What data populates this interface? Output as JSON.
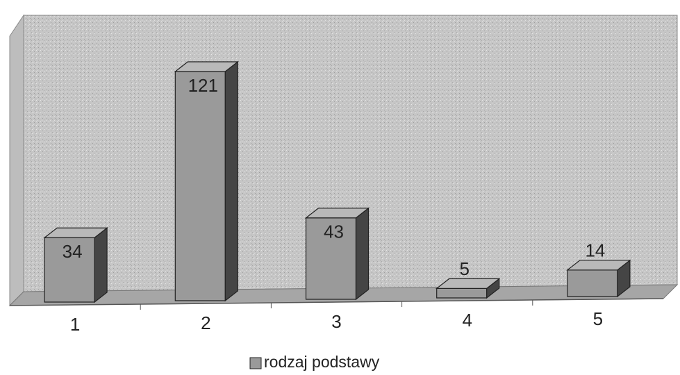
{
  "chart_data": {
    "type": "bar",
    "categories": [
      "1",
      "2",
      "3",
      "4",
      "5"
    ],
    "series": [
      {
        "name": "rodzaj podstawy",
        "color": "#9a9a9a",
        "values": [
          34,
          121,
          43,
          5,
          14
        ]
      }
    ]
  }
}
